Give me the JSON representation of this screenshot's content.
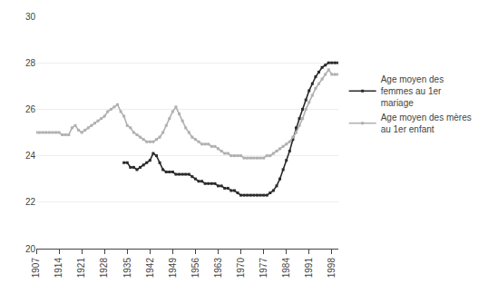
{
  "chart_data": {
    "type": "line",
    "series": [
      {
        "name": "Age moyen des\nfemmes au 1er\nmariage",
        "color": "#2a2a2a",
        "x": [
          1934,
          1935,
          1936,
          1937,
          1938,
          1939,
          1940,
          1941,
          1942,
          1943,
          1944,
          1945,
          1946,
          1947,
          1948,
          1949,
          1950,
          1951,
          1952,
          1953,
          1954,
          1955,
          1956,
          1957,
          1958,
          1959,
          1960,
          1961,
          1962,
          1963,
          1964,
          1965,
          1966,
          1967,
          1968,
          1969,
          1970,
          1971,
          1972,
          1973,
          1974,
          1975,
          1976,
          1977,
          1978,
          1979,
          1980,
          1981,
          1982,
          1983,
          1984,
          1985,
          1986,
          1987,
          1988,
          1989,
          1990,
          1991,
          1992,
          1993,
          1994,
          1995,
          1996,
          1997,
          1998,
          1999,
          2000
        ],
        "values": [
          23.7,
          23.7,
          23.5,
          23.5,
          23.4,
          23.5,
          23.6,
          23.7,
          23.8,
          24.1,
          24.0,
          23.7,
          23.4,
          23.3,
          23.3,
          23.3,
          23.2,
          23.2,
          23.2,
          23.2,
          23.2,
          23.1,
          23.0,
          22.9,
          22.9,
          22.8,
          22.8,
          22.8,
          22.8,
          22.7,
          22.7,
          22.6,
          22.6,
          22.5,
          22.5,
          22.4,
          22.3,
          22.3,
          22.3,
          22.3,
          22.3,
          22.3,
          22.3,
          22.3,
          22.3,
          22.4,
          22.5,
          22.7,
          23.0,
          23.4,
          23.8,
          24.2,
          24.7,
          25.2,
          25.6,
          26.0,
          26.4,
          26.8,
          27.1,
          27.4,
          27.6,
          27.8,
          27.9,
          28.0,
          28.0,
          28.0,
          28.0
        ]
      },
      {
        "name": "Age moyen des mères\nau 1er enfant",
        "color": "#b0b0b0",
        "x": [
          1907,
          1908,
          1909,
          1910,
          1911,
          1912,
          1913,
          1914,
          1915,
          1916,
          1917,
          1918,
          1919,
          1920,
          1921,
          1922,
          1923,
          1924,
          1925,
          1926,
          1927,
          1928,
          1929,
          1930,
          1931,
          1932,
          1933,
          1934,
          1935,
          1936,
          1937,
          1938,
          1939,
          1940,
          1941,
          1942,
          1943,
          1944,
          1945,
          1946,
          1947,
          1948,
          1949,
          1950,
          1951,
          1952,
          1953,
          1954,
          1955,
          1956,
          1957,
          1958,
          1959,
          1960,
          1961,
          1962,
          1963,
          1964,
          1965,
          1966,
          1967,
          1968,
          1969,
          1970,
          1971,
          1972,
          1973,
          1974,
          1975,
          1976,
          1977,
          1978,
          1979,
          1980,
          1981,
          1982,
          1983,
          1984,
          1985,
          1986,
          1987,
          1988,
          1989,
          1990,
          1991,
          1992,
          1993,
          1994,
          1995,
          1996,
          1997,
          1998,
          1999,
          2000
        ],
        "values": [
          25.0,
          25.0,
          25.0,
          25.0,
          25.0,
          25.0,
          25.0,
          25.0,
          24.9,
          24.9,
          24.9,
          25.2,
          25.3,
          25.1,
          25.0,
          25.1,
          25.2,
          25.3,
          25.4,
          25.5,
          25.6,
          25.7,
          25.9,
          26.0,
          26.1,
          26.2,
          25.9,
          25.7,
          25.3,
          25.2,
          25.0,
          24.9,
          24.8,
          24.7,
          24.6,
          24.6,
          24.6,
          24.7,
          24.8,
          25.0,
          25.3,
          25.6,
          25.9,
          26.1,
          25.8,
          25.5,
          25.2,
          25.0,
          24.8,
          24.7,
          24.6,
          24.5,
          24.5,
          24.5,
          24.4,
          24.4,
          24.3,
          24.2,
          24.1,
          24.1,
          24.0,
          24.0,
          24.0,
          24.0,
          23.9,
          23.9,
          23.9,
          23.9,
          23.9,
          23.9,
          23.9,
          24.0,
          24.0,
          24.1,
          24.2,
          24.3,
          24.4,
          24.5,
          24.6,
          24.8,
          25.0,
          25.3,
          25.6,
          26.0,
          26.3,
          26.6,
          26.9,
          27.1,
          27.3,
          27.5,
          27.7,
          27.5,
          27.5,
          27.5
        ]
      }
    ],
    "xlim": [
      1907,
      2000
    ],
    "xticks": [
      1907,
      1914,
      1921,
      1928,
      1935,
      1942,
      1949,
      1956,
      1963,
      1970,
      1977,
      1984,
      1991,
      1998
    ],
    "ylim": [
      20,
      30
    ],
    "yticks": [
      20,
      22,
      24,
      26,
      28,
      30
    ],
    "grid": "y",
    "legend": "right",
    "marker": "square"
  }
}
